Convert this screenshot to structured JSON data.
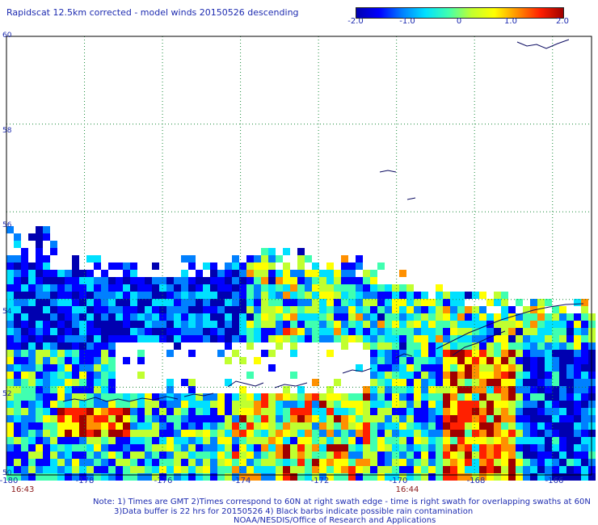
{
  "title": "Rapidscat 12.5km corrected - model winds 20150526 descending",
  "colorbar": {
    "min": -2.0,
    "max": 2.0,
    "tick_labels": [
      "-2.0",
      "-1.0",
      "0",
      "1.0",
      "2.0"
    ],
    "colors": [
      "#0000b0",
      "#0000ff",
      "#0080ff",
      "#00e0ff",
      "#40ffb0",
      "#c0ff30",
      "#ffff00",
      "#ff9000",
      "#ff2000",
      "#a00000"
    ]
  },
  "map": {
    "lat_range": [
      50,
      60
    ],
    "lon_range": [
      -180,
      -165
    ],
    "lat_labels": [
      "60",
      "58",
      "56",
      "54",
      "52",
      "50"
    ],
    "lon_labels": [
      "-180",
      "-178",
      "-176",
      "-174",
      "-172",
      "-170",
      "-168",
      "-166"
    ],
    "grid_color": "#1a8a3a",
    "coast_color": "#0a0a60"
  },
  "times": {
    "left": "16:43",
    "middle": "16:44"
  },
  "notes": {
    "line1": "Note: 1) Times are GMT 2)Times correspond to 60N at right swath edge - time is right swath for overlapping swaths at 60N",
    "line2": "3)Data buffer is 22 hrs for 20150526 4) Black barbs indicate possible rain contamination",
    "line3": "NOAA/NESDIS/Office of Research and Applications"
  }
}
